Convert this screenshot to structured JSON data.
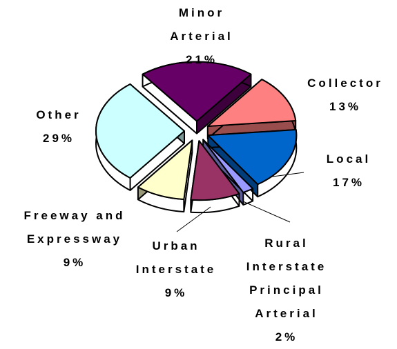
{
  "chart_data": {
    "type": "pie",
    "categories": [
      "Minor Arterial",
      "Collector",
      "Local",
      "Rural Interstate Principal Arterial",
      "Urban Interstate",
      "Freeway and Expressway",
      "Other"
    ],
    "values": [
      21,
      13,
      17,
      2,
      9,
      9,
      29
    ],
    "value_labels": [
      "21%",
      "13%",
      "17%",
      "2%",
      "9%",
      "9%",
      "29%"
    ],
    "colors": [
      "#660066",
      "#ff8080",
      "#0066cc",
      "#9999ff",
      "#993366",
      "#ffffcc",
      "#ccffff"
    ]
  }
}
